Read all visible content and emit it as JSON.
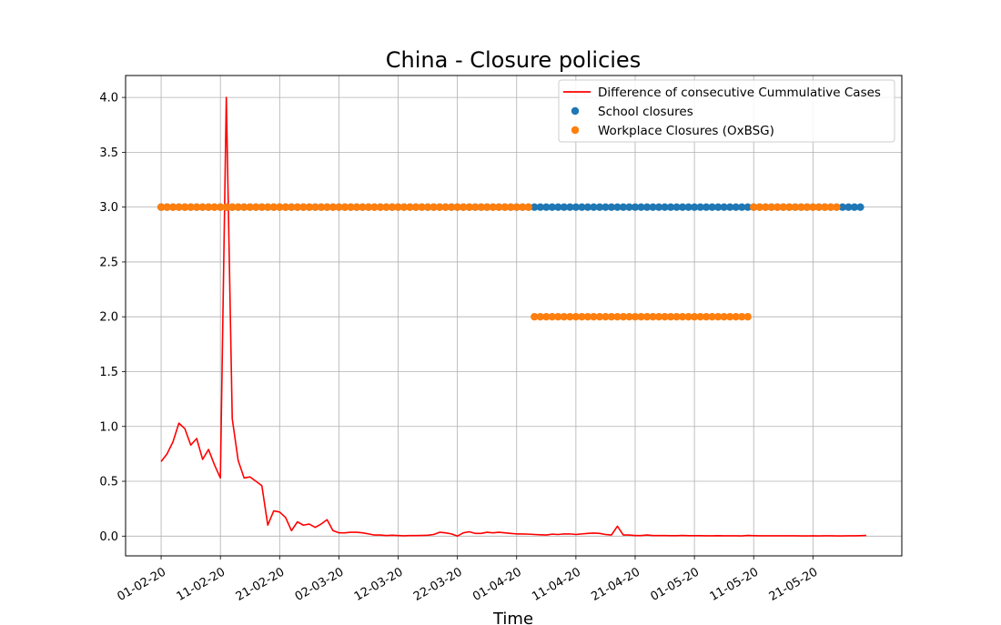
{
  "chart_data": {
    "type": "line",
    "title": "China - Closure policies",
    "xlabel": "Time",
    "ylabel": "",
    "x_start": "2020-02-01",
    "x_end": "2020-05-31",
    "xlim": [
      "2020-01-26",
      "2020-06-05"
    ],
    "ylim": [
      -0.18,
      4.2
    ],
    "grid": true,
    "legend_position": "top-right",
    "x_ticks": [
      "01-02-20",
      "11-02-20",
      "21-02-20",
      "02-03-20",
      "12-03-20",
      "22-03-20",
      "01-04-20",
      "11-04-20",
      "21-04-20",
      "01-05-20",
      "11-05-20",
      "21-05-20"
    ],
    "x_tick_dates": [
      "2020-02-01",
      "2020-02-11",
      "2020-02-21",
      "2020-03-02",
      "2020-03-12",
      "2020-03-22",
      "2020-04-01",
      "2020-04-11",
      "2020-04-21",
      "2020-05-01",
      "2020-05-11",
      "2020-05-21"
    ],
    "y_ticks": [
      "0.0",
      "0.5",
      "1.0",
      "1.5",
      "2.0",
      "2.5",
      "3.0",
      "3.5",
      "4.0"
    ],
    "y_tick_values": [
      0.0,
      0.5,
      1.0,
      1.5,
      2.0,
      2.5,
      3.0,
      3.5,
      4.0
    ],
    "series": [
      {
        "name": "Difference of consecutive Cummulative Cases",
        "kind": "line",
        "color": "#ff0000",
        "values": [
          0.68,
          0.75,
          0.86,
          1.03,
          0.98,
          0.83,
          0.89,
          0.7,
          0.79,
          0.65,
          0.53,
          4.0,
          1.07,
          0.69,
          0.53,
          0.54,
          0.5,
          0.46,
          0.1,
          0.23,
          0.22,
          0.17,
          0.05,
          0.13,
          0.1,
          0.11,
          0.08,
          0.11,
          0.15,
          0.05,
          0.03,
          0.03,
          0.035,
          0.035,
          0.03,
          0.02,
          0.01,
          0.01,
          0.005,
          0.008,
          0.005,
          0.003,
          0.005,
          0.005,
          0.006,
          0.008,
          0.015,
          0.035,
          0.03,
          0.02,
          0.0,
          0.03,
          0.04,
          0.025,
          0.025,
          0.035,
          0.03,
          0.035,
          0.03,
          0.025,
          0.02,
          0.02,
          0.018,
          0.015,
          0.012,
          0.01,
          0.018,
          0.015,
          0.02,
          0.02,
          0.015,
          0.02,
          0.025,
          0.028,
          0.025,
          0.015,
          0.01,
          0.09,
          0.01,
          0.01,
          0.005,
          0.005,
          0.01,
          0.005,
          0.005,
          0.005,
          0.004,
          0.004,
          0.006,
          0.004,
          0.004,
          0.004,
          0.003,
          0.003,
          0.004,
          0.003,
          0.003,
          0.003,
          0.002,
          0.006,
          0.004,
          0.003,
          0.003,
          0.003,
          0.003,
          0.003,
          0.003,
          0.003,
          0.002,
          0.002,
          0.003,
          0.002,
          0.003,
          0.003,
          0.002,
          0.002,
          0.003,
          0.003,
          0.004,
          0.006
        ]
      },
      {
        "name": "School closures",
        "kind": "points",
        "color": "#1f77b4",
        "segments": [
          {
            "start": "2020-02-01",
            "end": "2020-05-29",
            "value": 3.0
          }
        ]
      },
      {
        "name": "Workplace Closures (OxBSG)",
        "kind": "points",
        "color": "#ff7f0e",
        "segments": [
          {
            "start": "2020-02-01",
            "end": "2020-04-03",
            "value": 3.0
          },
          {
            "start": "2020-04-04",
            "end": "2020-05-10",
            "value": 2.0
          },
          {
            "start": "2020-05-11",
            "end": "2020-05-25",
            "value": 3.0
          }
        ]
      }
    ]
  }
}
